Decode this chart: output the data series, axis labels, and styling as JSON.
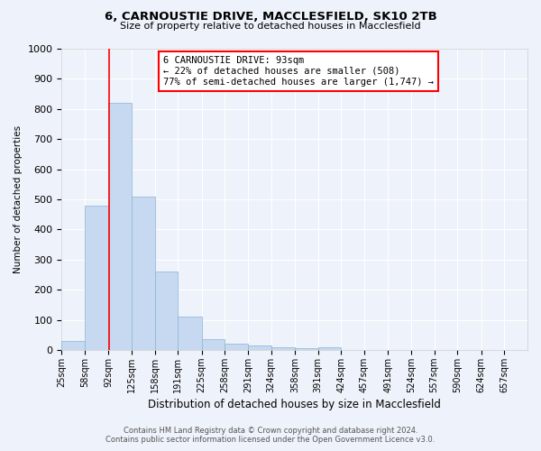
{
  "title_line1": "6, CARNOUSTIE DRIVE, MACCLESFIELD, SK10 2TB",
  "title_line2": "Size of property relative to detached houses in Macclesfield",
  "xlabel": "Distribution of detached houses by size in Macclesfield",
  "ylabel": "Number of detached properties",
  "bar_edges": [
    25,
    58,
    92,
    125,
    158,
    191,
    225,
    258,
    291,
    324,
    358,
    391,
    424,
    457,
    491,
    524,
    557,
    590,
    624,
    657,
    690
  ],
  "bar_values": [
    30,
    480,
    820,
    510,
    260,
    110,
    35,
    20,
    15,
    8,
    5,
    10,
    0,
    0,
    0,
    0,
    0,
    0,
    0,
    0
  ],
  "bar_color": "#c6d9f0",
  "bar_edge_color": "#8ab4d4",
  "red_line_x": 93,
  "annotation_text": "6 CARNOUSTIE DRIVE: 93sqm\n← 22% of detached houses are smaller (508)\n77% of semi-detached houses are larger (1,747) →",
  "annotation_box_color": "white",
  "annotation_box_edge": "red",
  "ylim": [
    0,
    1000
  ],
  "yticks": [
    0,
    100,
    200,
    300,
    400,
    500,
    600,
    700,
    800,
    900,
    1000
  ],
  "footer_line1": "Contains HM Land Registry data © Crown copyright and database right 2024.",
  "footer_line2": "Contains public sector information licensed under the Open Government Licence v3.0.",
  "background_color": "#eef2fa"
}
